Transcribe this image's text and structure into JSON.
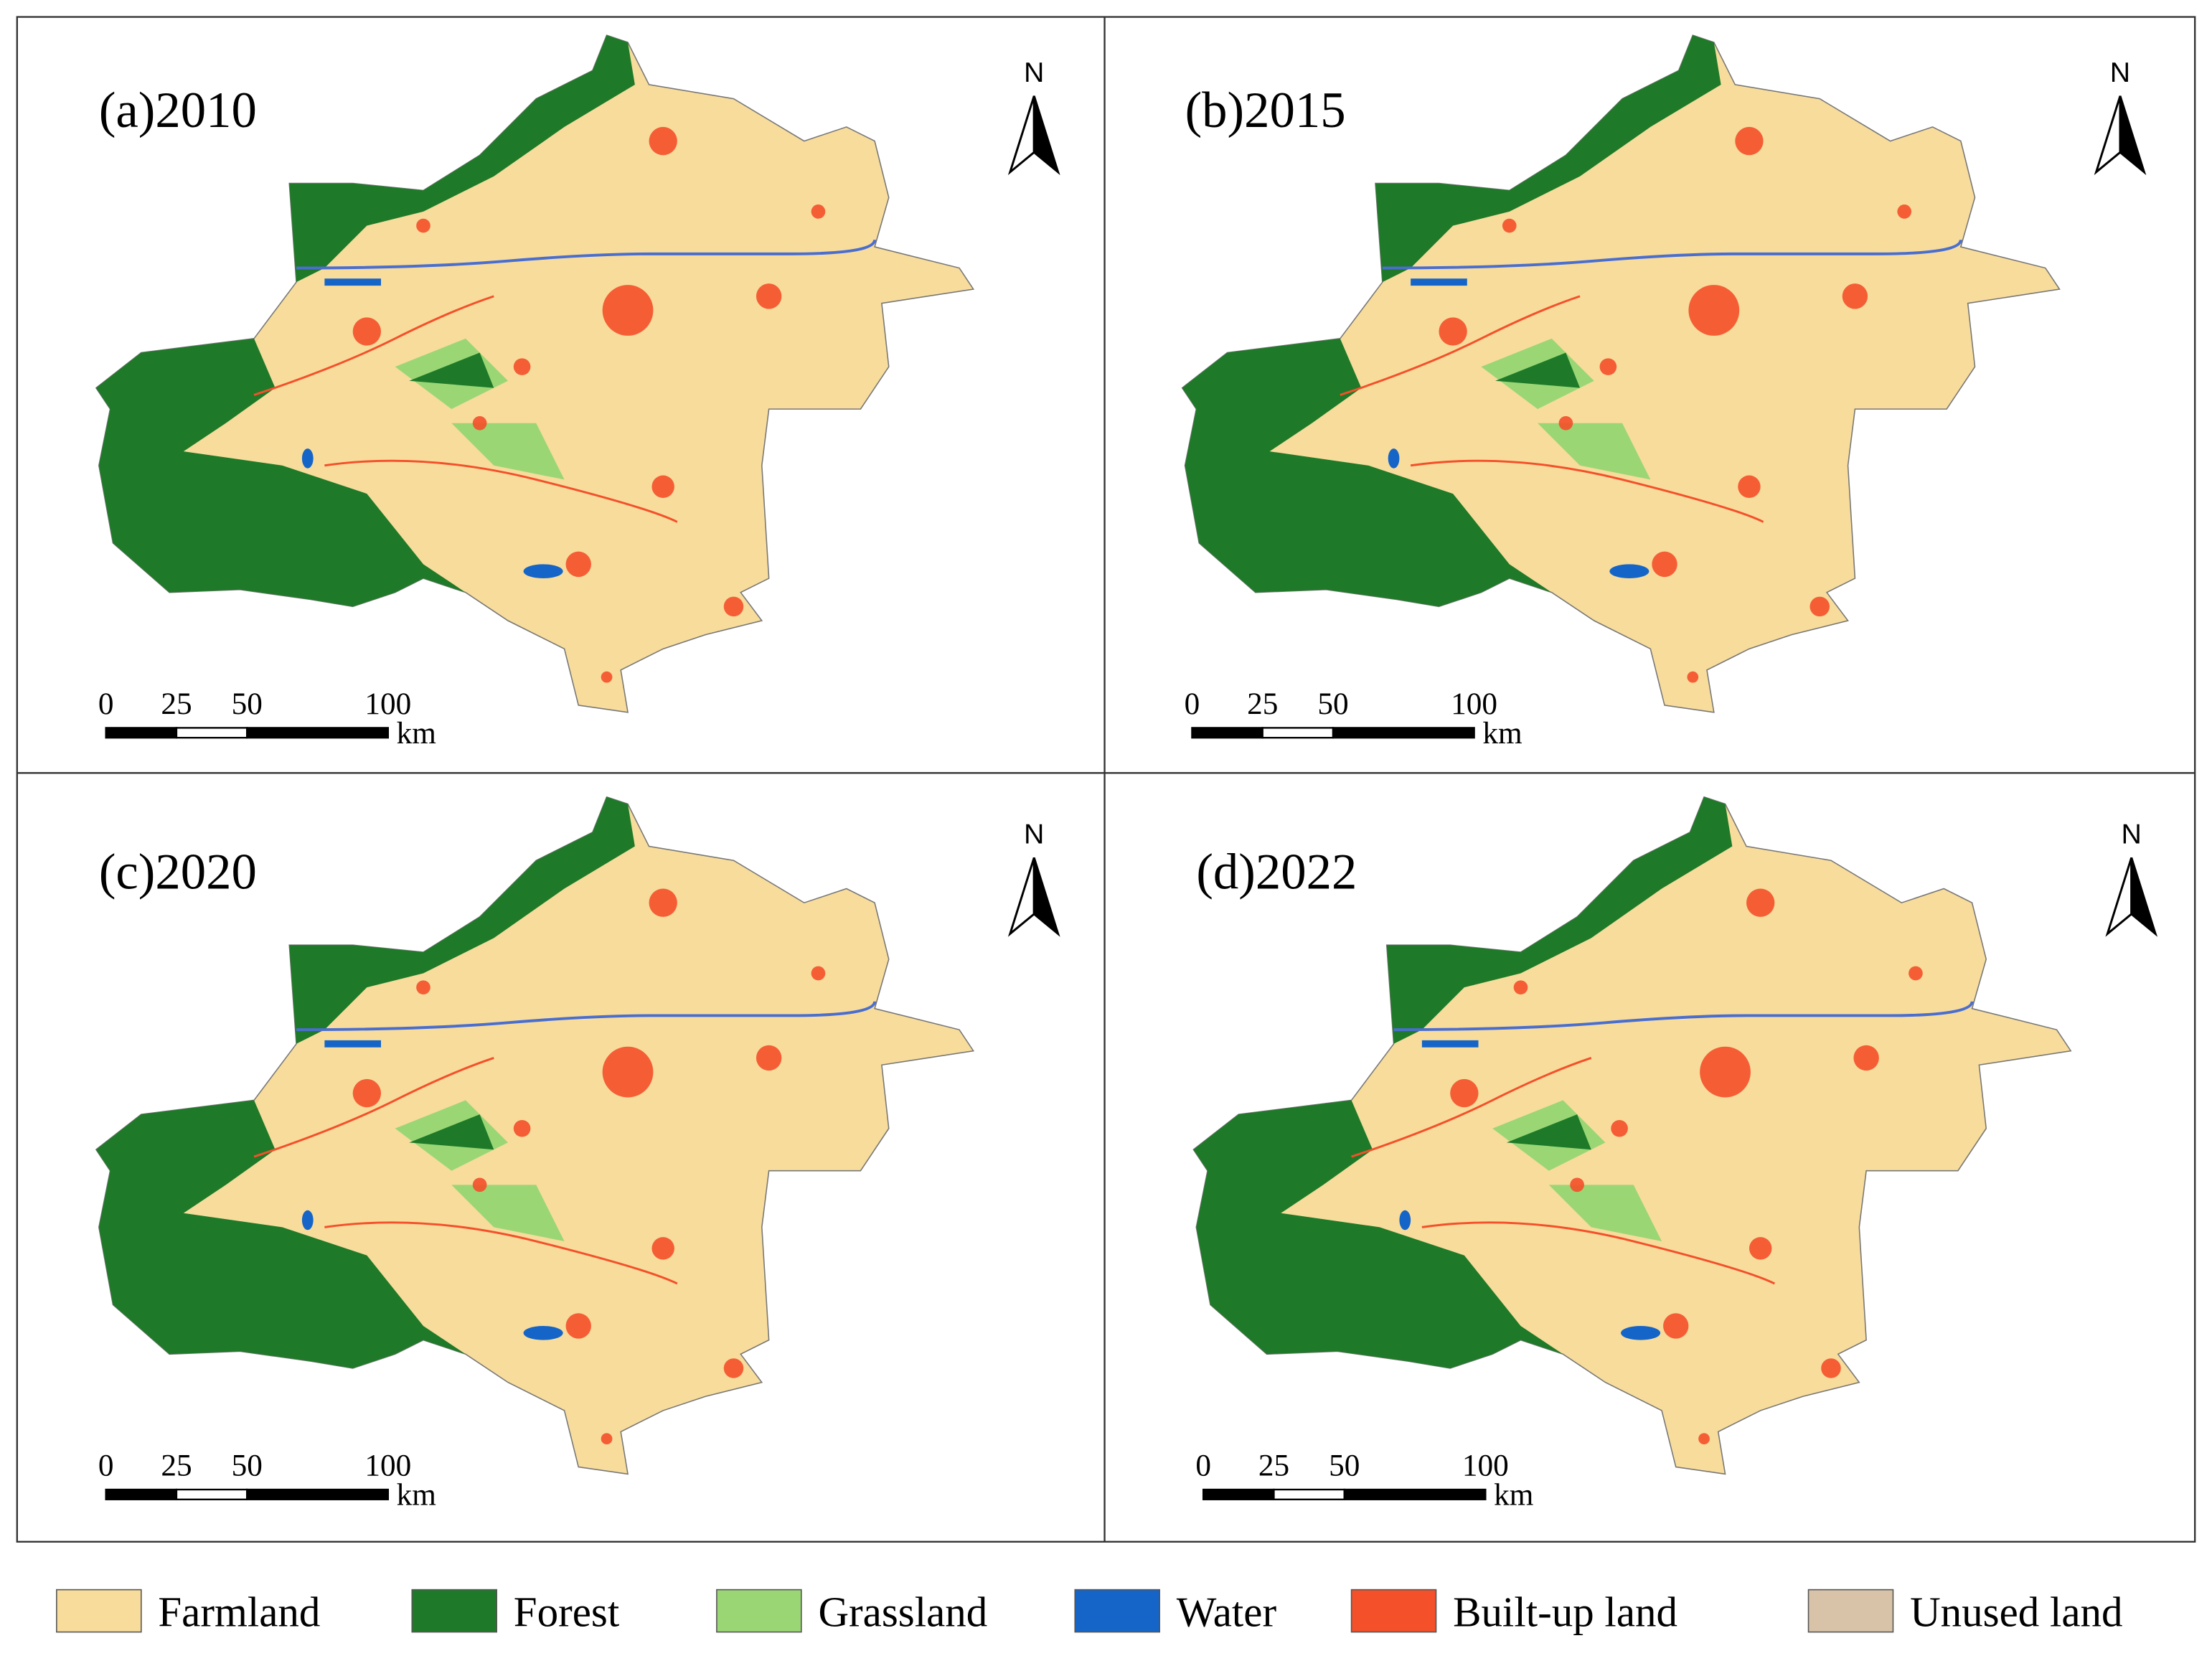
{
  "panels": [
    {
      "title": "(a)2010",
      "north": "N",
      "scale": {
        "ticks": [
          0,
          25,
          50,
          100
        ],
        "unit": "km"
      }
    },
    {
      "title": "(b)2015",
      "north": "N",
      "scale": {
        "ticks": [
          0,
          25,
          50,
          100
        ],
        "unit": "km"
      }
    },
    {
      "title": "(c)2020",
      "north": "N",
      "scale": {
        "ticks": [
          0,
          25,
          50,
          100
        ],
        "unit": "km"
      }
    },
    {
      "title": "(d)2022",
      "north": "N",
      "scale": {
        "ticks": [
          0,
          25,
          50,
          100
        ],
        "unit": "km"
      }
    }
  ],
  "legend": [
    {
      "label": "Farmland",
      "color": "#f7dc9c"
    },
    {
      "label": "Forest",
      "color": "#1e7a28"
    },
    {
      "label": "Grassland",
      "color": "#9bd675"
    },
    {
      "label": "Water",
      "color": "#1565c8"
    },
    {
      "label": "Built-up land",
      "color": "#f4502a"
    },
    {
      "label": "Unused land",
      "color": "#d8c3a8"
    }
  ]
}
